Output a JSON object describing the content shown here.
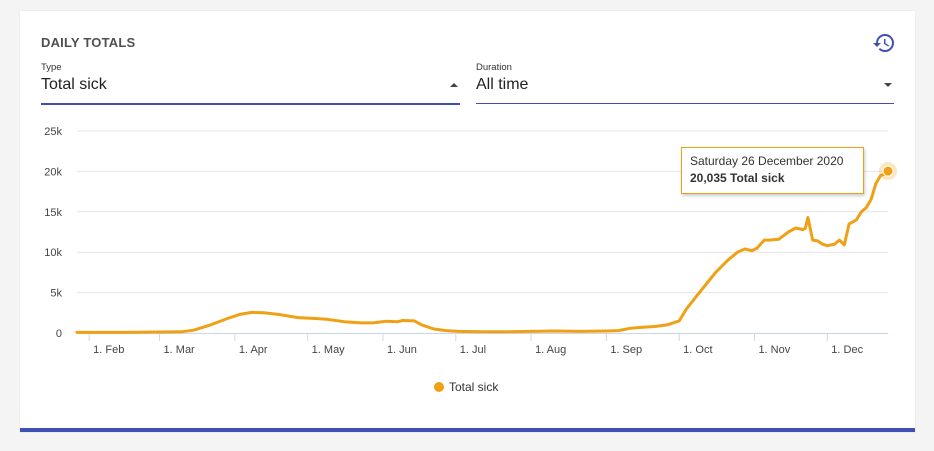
{
  "card": {
    "title": "DAILY TOTALS"
  },
  "controls": {
    "type": {
      "label": "Type",
      "value": "Total sick"
    },
    "duration": {
      "label": "Duration",
      "value": "All time"
    }
  },
  "icons": {
    "history": "history-icon",
    "type_caret": "caret-up-icon",
    "duration_caret": "caret-down-icon"
  },
  "colors": {
    "series": "#f0a014",
    "accent": "#3f51b5"
  },
  "tooltip": {
    "date": "Saturday 26 December 2020",
    "value_text": "20,035 Total sick"
  },
  "chart_data": {
    "type": "line",
    "title": "",
    "xlabel": "",
    "ylabel": "",
    "ylim": [
      0,
      25000
    ],
    "yticks": [
      0,
      5000,
      10000,
      15000,
      20000,
      25000
    ],
    "ytick_labels": [
      "0",
      "5k",
      "10k",
      "15k",
      "20k",
      "25k"
    ],
    "xticks": [
      "2020-02-01",
      "2020-03-01",
      "2020-04-01",
      "2020-05-01",
      "2020-06-01",
      "2020-07-01",
      "2020-08-01",
      "2020-09-01",
      "2020-10-01",
      "2020-11-01",
      "2020-12-01"
    ],
    "xtick_labels": [
      "1. Feb",
      "1. Mar",
      "1. Apr",
      "1. May",
      "1. Jun",
      "1. Jul",
      "1. Aug",
      "1. Sep",
      "1. Oct",
      "1. Nov",
      "1. Dec"
    ],
    "xlim": [
      "2020-01-27",
      "2020-12-26"
    ],
    "grid": true,
    "legend": "bottom-center",
    "series": [
      {
        "name": "Total sick",
        "x": [
          "2020-01-27",
          "2020-02-15",
          "2020-03-10",
          "2020-03-15",
          "2020-03-22",
          "2020-03-29",
          "2020-04-03",
          "2020-04-08",
          "2020-04-13",
          "2020-04-20",
          "2020-04-27",
          "2020-05-04",
          "2020-05-09",
          "2020-05-16",
          "2020-05-23",
          "2020-05-28",
          "2020-06-02",
          "2020-06-07",
          "2020-06-09",
          "2020-06-14",
          "2020-06-17",
          "2020-06-22",
          "2020-06-27",
          "2020-07-02",
          "2020-07-12",
          "2020-07-22",
          "2020-08-01",
          "2020-08-11",
          "2020-08-21",
          "2020-09-01",
          "2020-09-06",
          "2020-09-11",
          "2020-09-16",
          "2020-09-21",
          "2020-09-26",
          "2020-10-01",
          "2020-10-04",
          "2020-10-08",
          "2020-10-12",
          "2020-10-16",
          "2020-10-21",
          "2020-10-25",
          "2020-10-28",
          "2020-10-31",
          "2020-11-02",
          "2020-11-05",
          "2020-11-07",
          "2020-11-11",
          "2020-11-15",
          "2020-11-18",
          "2020-11-21",
          "2020-11-22",
          "2020-11-23",
          "2020-11-25",
          "2020-11-27",
          "2020-11-29",
          "2020-12-01",
          "2020-12-04",
          "2020-12-06",
          "2020-12-08",
          "2020-12-10",
          "2020-12-13",
          "2020-12-15",
          "2020-12-17",
          "2020-12-19",
          "2020-12-21",
          "2020-12-23",
          "2020-12-25",
          "2020-12-26"
        ],
        "values": [
          80,
          80,
          150,
          350,
          1000,
          1800,
          2300,
          2550,
          2500,
          2250,
          1900,
          1800,
          1700,
          1400,
          1250,
          1250,
          1450,
          1400,
          1550,
          1500,
          1000,
          500,
          300,
          200,
          150,
          150,
          200,
          250,
          200,
          250,
          300,
          600,
          700,
          800,
          1000,
          1500,
          3000,
          4500,
          6000,
          7500,
          9000,
          10000,
          10400,
          10200,
          10500,
          11500,
          11500,
          11600,
          12500,
          13000,
          12800,
          13000,
          14300,
          11500,
          11400,
          11000,
          10800,
          11000,
          11500,
          10900,
          13500,
          14000,
          15000,
          15500,
          16500,
          18500,
          19500,
          19700,
          20035
        ]
      }
    ]
  }
}
